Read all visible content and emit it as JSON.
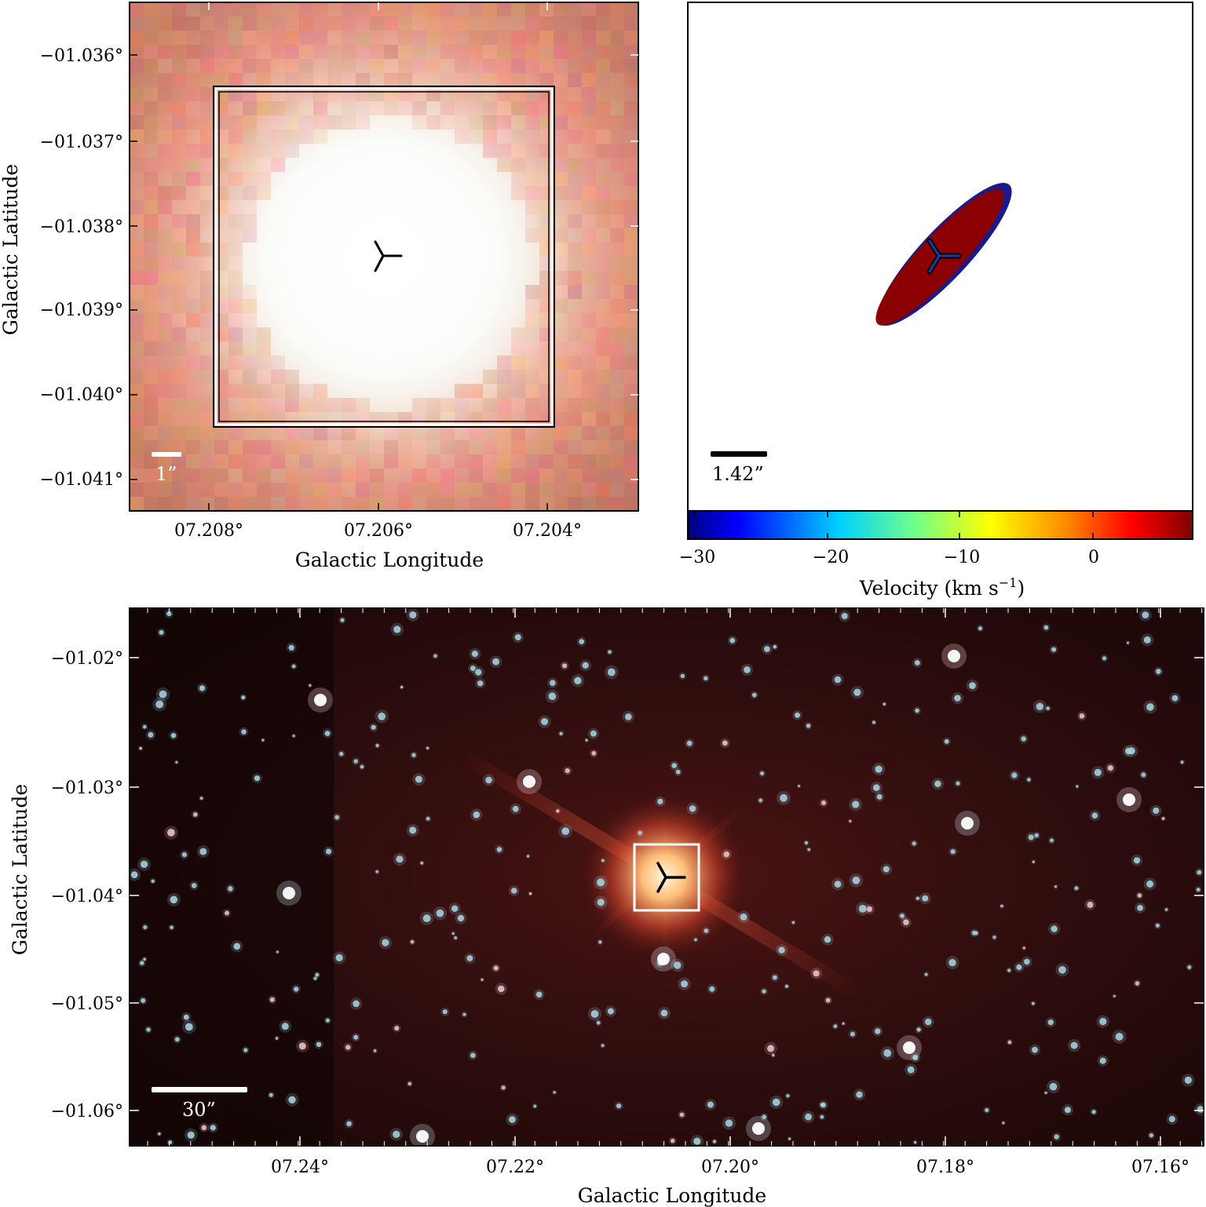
{
  "panel_top_left": {
    "x_ticks": [
      "07.208°",
      "07.206°",
      "07.204°"
    ],
    "y_ticks": [
      "−01.036°",
      "−01.037°",
      "−01.038°",
      "−01.039°",
      "−01.040°",
      "−01.041°"
    ],
    "xlabel": "Galactic Longitude",
    "ylabel": "Galactic Latitude",
    "scale_bar": "1”"
  },
  "panel_top_right": {
    "scale_bar": "1.42”",
    "colorbar_ticks": [
      "−30",
      "−20",
      "−10",
      "0"
    ],
    "colorbar_label": "Velocity (km s",
    "colorbar_label_sup": "−1",
    "colorbar_label_end": ")"
  },
  "panel_bottom": {
    "x_ticks": [
      "07.24°",
      "07.22°",
      "07.20°",
      "07.18°",
      "07.16°"
    ],
    "y_ticks": [
      "−01.02°",
      "−01.03°",
      "−01.04°",
      "−01.05°",
      "−01.06°"
    ],
    "xlabel": "Galactic Longitude",
    "ylabel": "Galactic Latitude",
    "scale_bar": "30”"
  },
  "colors": {
    "ellipse_fill": "#8b0000",
    "ellipse_edge": "#1a1a8c",
    "sky_bg": "#2a0c0c"
  }
}
